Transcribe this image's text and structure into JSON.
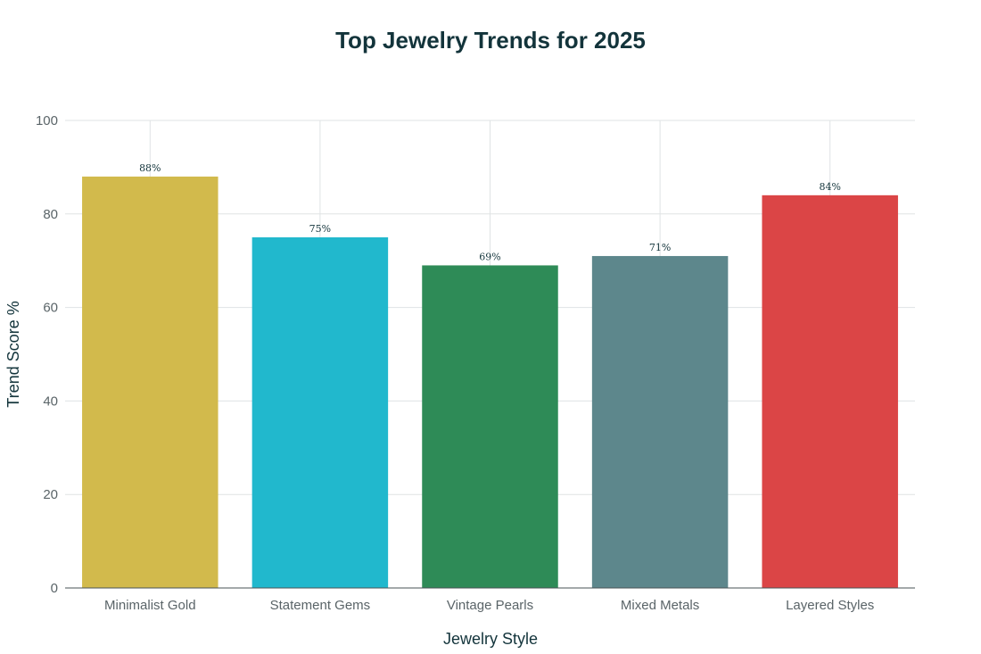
{
  "chart_data": {
    "type": "bar",
    "title": "Top Jewelry Trends for 2025",
    "xlabel": "Jewelry Style",
    "ylabel": "Trend Score %",
    "ylim": [
      0,
      100
    ],
    "yticks": [
      0,
      20,
      40,
      60,
      80,
      100
    ],
    "grid": true,
    "legend": "none",
    "categories": [
      "Minimalist Gold",
      "Statement Gems",
      "Vintage Pearls",
      "Mixed Metals",
      "Layered Styles"
    ],
    "values": [
      88,
      75,
      69,
      71,
      84
    ],
    "data_labels": [
      "88%",
      "75%",
      "69%",
      "71%",
      "84%"
    ],
    "colors": [
      "#d2ba4c",
      "#21b8cd",
      "#2e8b57",
      "#5d878c",
      "#db4546"
    ]
  }
}
